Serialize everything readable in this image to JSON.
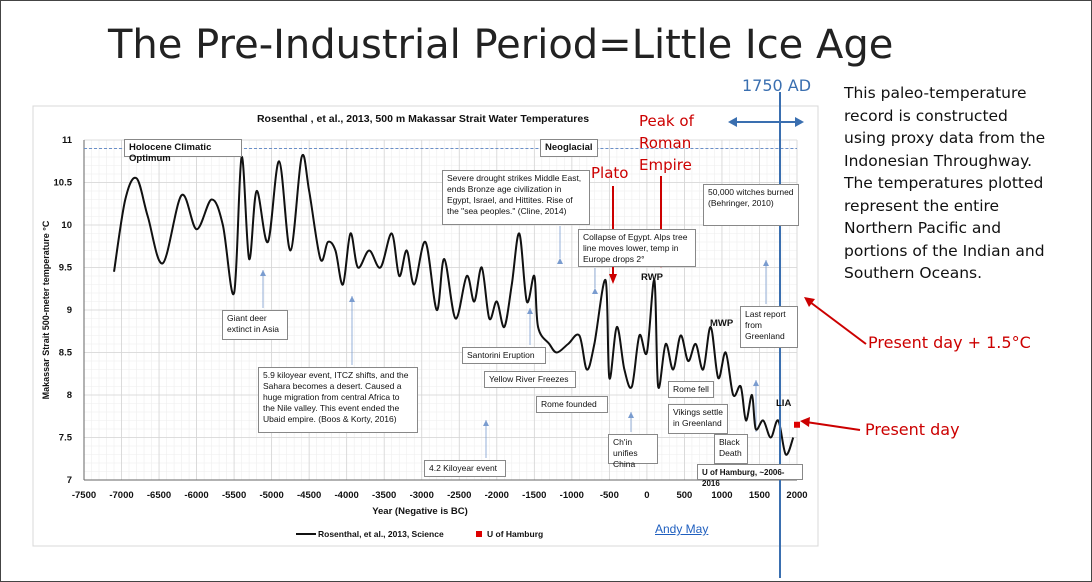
{
  "slide": {
    "title": "The Pre-Industrial Period=Little Ice Age",
    "side_text": "This paleo-temperature record is constructed using proxy data from the Indonesian Throughway. The temperatures plotted represent the entire Northern Pacific and portions of the Indian and Southern Oceans.",
    "present_plus_label": "Present day + 1.5°C",
    "present_day_label": "Present day",
    "ad1750_label": "1750 AD",
    "plato_label": "Plato",
    "roman_label_1": "Peak of",
    "roman_label_2": "Roman",
    "roman_label_3": "Empire",
    "author": "Andy May",
    "colors": {
      "red": "#cc0000",
      "blue": "#3a6fb0",
      "line": "#111111"
    }
  },
  "chart_data": {
    "type": "line",
    "title": "Rosenthal , et al., 2013, 500 m Makassar Strait Water Temperatures",
    "xlabel": "Year (Negative is BC)",
    "ylabel": "Makassar Strait 500-meter temperature °C",
    "xlim": [
      -7500,
      2000
    ],
    "ylim": [
      7,
      11
    ],
    "x_ticks": [
      "-7500",
      "-7000",
      "-6500",
      "-6000",
      "-5500",
      "-5000",
      "-4500",
      "-4000",
      "-3500",
      "-3000",
      "-2500",
      "-2000",
      "-1500",
      "-1000",
      "-500",
      "0",
      "500",
      "1000",
      "1500",
      "2000"
    ],
    "y_ticks": [
      "7",
      "7.5",
      "8",
      "8.5",
      "9",
      "9.5",
      "10",
      "10.5",
      "11"
    ],
    "grid": true,
    "legend": {
      "placement": "bottom",
      "entries": [
        "Rosenthal, et al., 2013, Science",
        "U of Hamburg"
      ]
    },
    "series": [
      {
        "name": "Rosenthal, et al., 2013, Science",
        "x": [
          -7100,
          -6950,
          -6800,
          -6650,
          -6450,
          -6200,
          -6000,
          -5800,
          -5650,
          -5500,
          -5400,
          -5300,
          -5200,
          -5050,
          -4900,
          -4750,
          -4600,
          -4500,
          -4350,
          -4250,
          -4150,
          -4050,
          -3950,
          -3850,
          -3700,
          -3550,
          -3400,
          -3300,
          -3200,
          -3100,
          -2950,
          -2800,
          -2700,
          -2550,
          -2400,
          -2300,
          -2200,
          -2100,
          -2000,
          -1900,
          -1800,
          -1700,
          -1600,
          -1500,
          -1450,
          -1300,
          -1200,
          -1050,
          -900,
          -800,
          -700,
          -550,
          -500,
          -400,
          -300,
          -200,
          -100,
          0,
          100,
          150,
          250,
          350,
          450,
          550,
          650,
          750,
          850,
          950,
          1050,
          1150,
          1250,
          1320,
          1400,
          1450,
          1550,
          1650,
          1750,
          1850,
          1950
        ],
        "y": [
          9.45,
          10.3,
          10.55,
          10.1,
          9.55,
          10.35,
          9.95,
          10.3,
          10.0,
          9.2,
          10.8,
          9.6,
          10.4,
          9.8,
          10.75,
          9.7,
          10.8,
          10.4,
          9.6,
          9.8,
          9.7,
          9.3,
          9.9,
          9.5,
          9.7,
          9.5,
          9.9,
          9.4,
          9.7,
          9.3,
          9.8,
          9.0,
          9.6,
          8.9,
          9.4,
          9.1,
          9.5,
          8.9,
          9.1,
          8.8,
          9.3,
          9.9,
          9.1,
          9.4,
          8.8,
          8.6,
          8.5,
          8.6,
          8.7,
          8.3,
          8.6,
          9.35,
          8.2,
          8.8,
          8.3,
          8.1,
          8.7,
          8.5,
          9.35,
          8.1,
          8.6,
          8.3,
          8.7,
          8.4,
          8.6,
          8.3,
          8.8,
          8.2,
          8.5,
          8.0,
          8.1,
          7.7,
          8.0,
          7.6,
          7.7,
          7.5,
          7.7,
          7.3,
          7.5
        ]
      },
      {
        "name": "U of Hamburg",
        "x": [
          2000
        ],
        "y": [
          7.65
        ]
      }
    ],
    "annotations": {
      "holocene": "Holocene Climatic Optimum",
      "neoglacial": "Neoglacial",
      "drought": "Severe drought strikes Middle East, ends Bronze age civilization in Egypt, Israel, and Hittites. Rise of the \"sea peoples.\" (Cline, 2014)",
      "egypt": "Collapse of Egypt. Alps tree line moves lower, temp in Europe drops 2°",
      "witches": "50,000 witches burned (Behringer, 2010)",
      "greenland_report": "Last report from Greenland",
      "deer": "Giant deer extinct in Asia",
      "kiloyear59": "5.9 kiloyear event, ITCZ shifts, and the Sahara becomes a desert. Caused a huge migration from central Africa to the Nile valley. This event ended the Ubaid empire. (Boos & Korty, 2016)",
      "santorini": "Santorini Eruption",
      "yellow_river": "Yellow River Freezes",
      "rome_founded": "Rome founded",
      "kiloyear42": "4.2 Kiloyear event",
      "chin": "Ch'in unifies China",
      "rome_fell": "Rome fell",
      "vikings": "Vikings settle in Greenland",
      "black_death": "Black Death",
      "hamburg": "U of Hamburg, ~2006-2016",
      "rwp": "RWP",
      "mwp": "MWP",
      "lia": "LIA"
    }
  }
}
